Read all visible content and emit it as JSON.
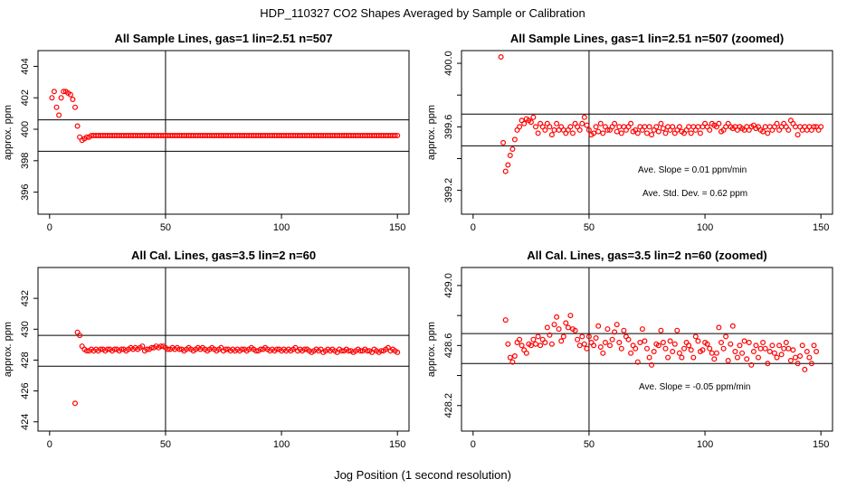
{
  "page": {
    "main_title": "HDP_110327  CO2 Shapes Averaged by Sample or Calibration",
    "xlabel": "Jog Position (1 second resolution)"
  },
  "chart_data": [
    {
      "type": "scatter",
      "title": "All Sample Lines, gas=1 lin=2.51 n=507",
      "xlabel": "",
      "ylabel": "approx. ppm",
      "xlim": [
        -5,
        155
      ],
      "ylim": [
        394.6,
        405.0
      ],
      "xticks": [
        0,
        50,
        100,
        150
      ],
      "yticks": [
        396,
        398,
        400,
        402,
        404
      ],
      "vline": 50,
      "hlines": [
        400.6,
        398.6
      ],
      "marker_color": "#ff0000",
      "points": {
        "x_start": 1,
        "y": [
          402.0,
          402.4,
          401.4,
          400.9,
          402.0,
          402.4,
          402.4,
          402.3,
          402.2,
          401.9,
          401.4,
          400.2,
          399.5,
          399.3,
          399.4,
          399.5,
          399.5,
          399.6,
          399.6,
          399.6,
          399.6,
          399.6,
          399.6,
          399.6,
          399.6,
          399.6,
          399.6,
          399.6,
          399.6,
          399.6,
          399.6,
          399.6,
          399.6,
          399.6,
          399.6,
          399.6,
          399.6,
          399.6,
          399.6,
          399.6,
          399.6,
          399.6,
          399.6,
          399.6,
          399.6,
          399.6,
          399.6,
          399.6,
          399.6,
          399.6,
          399.6,
          399.6,
          399.6,
          399.6,
          399.6,
          399.6,
          399.6,
          399.6,
          399.6,
          399.6,
          399.6,
          399.6,
          399.6,
          399.6,
          399.6,
          399.6,
          399.6,
          399.6,
          399.6,
          399.6,
          399.6,
          399.6,
          399.6,
          399.6,
          399.6,
          399.6,
          399.6,
          399.6,
          399.6,
          399.6,
          399.6,
          399.6,
          399.6,
          399.6,
          399.6,
          399.6,
          399.6,
          399.6,
          399.6,
          399.6,
          399.6,
          399.6,
          399.6,
          399.6,
          399.6,
          399.6,
          399.6,
          399.6,
          399.6,
          399.6,
          399.6,
          399.6,
          399.6,
          399.6,
          399.6,
          399.6,
          399.6,
          399.6,
          399.6,
          399.6,
          399.6,
          399.6,
          399.6,
          399.6,
          399.6,
          399.6,
          399.6,
          399.6,
          399.6,
          399.6,
          399.6,
          399.6,
          399.6,
          399.6,
          399.6,
          399.6,
          399.6,
          399.6,
          399.6,
          399.6,
          399.6,
          399.6,
          399.6,
          399.6,
          399.6,
          399.6,
          399.6,
          399.6,
          399.6,
          399.6,
          399.6,
          399.6,
          399.6,
          399.6,
          399.6,
          399.6,
          399.6,
          399.6,
          399.6,
          399.6
        ]
      },
      "annotations": []
    },
    {
      "type": "scatter",
      "title": "All Sample Lines, gas=1 lin=2.51 n=507 (zoomed)",
      "xlabel": "",
      "ylabel": "approx. ppm",
      "xlim": [
        -5,
        155
      ],
      "ylim": [
        399.05,
        400.08
      ],
      "xticks": [
        0,
        50,
        100,
        150
      ],
      "yticks": [
        399.2,
        399.4,
        399.6,
        399.8,
        400.0
      ],
      "ytick_labels": [
        "399.2",
        "",
        "399.6",
        "",
        "400.0"
      ],
      "vline": 50,
      "hlines": [
        399.68,
        399.48
      ],
      "marker_color": "#ff0000",
      "points": {
        "x_start": 12,
        "y": [
          400.04,
          399.5,
          399.32,
          399.36,
          399.42,
          399.46,
          399.52,
          399.58,
          399.6,
          399.64,
          399.62,
          399.65,
          399.64,
          399.63,
          399.66,
          399.6,
          399.56,
          399.62,
          399.6,
          399.58,
          399.62,
          399.6,
          399.55,
          399.58,
          399.62,
          399.58,
          399.6,
          399.58,
          399.56,
          399.58,
          399.6,
          399.56,
          399.62,
          399.6,
          399.58,
          399.62,
          399.66,
          399.61,
          399.58,
          399.55,
          399.56,
          399.6,
          399.57,
          399.62,
          399.56,
          399.6,
          399.58,
          399.58,
          399.6,
          399.62,
          399.57,
          399.6,
          399.56,
          399.6,
          399.58,
          399.6,
          399.62,
          399.57,
          399.58,
          399.56,
          399.6,
          399.58,
          399.6,
          399.56,
          399.6,
          399.55,
          399.58,
          399.6,
          399.57,
          399.62,
          399.59,
          399.56,
          399.6,
          399.58,
          399.6,
          399.56,
          399.58,
          399.6,
          399.57,
          399.56,
          399.58,
          399.6,
          399.56,
          399.6,
          399.58,
          399.6,
          399.56,
          399.6,
          399.62,
          399.6,
          399.58,
          399.62,
          399.61,
          399.6,
          399.62,
          399.57,
          399.58,
          399.6,
          399.62,
          399.6,
          399.59,
          399.6,
          399.58,
          399.6,
          399.59,
          399.58,
          399.6,
          399.58,
          399.6,
          399.61,
          399.59,
          399.6,
          399.58,
          399.57,
          399.6,
          399.56,
          399.6,
          399.58,
          399.6,
          399.62,
          399.58,
          399.6,
          399.62,
          399.6,
          399.58,
          399.64,
          399.62,
          399.6,
          399.55,
          399.6,
          399.58,
          399.6,
          399.58,
          399.6,
          399.58,
          399.6,
          399.6,
          399.58,
          399.6
        ]
      },
      "annotations": [
        "Ave. Slope =  0.01  ppm/min",
        "Ave. Std. Dev. =  0.62  ppm"
      ]
    },
    {
      "type": "scatter",
      "title": "All Cal. Lines, gas=3.5 lin=2 n=60",
      "xlabel": "",
      "ylabel": "approx. ppm",
      "xlim": [
        -5,
        155
      ],
      "ylim": [
        423.4,
        434.0
      ],
      "xticks": [
        0,
        50,
        100,
        150
      ],
      "yticks": [
        424,
        426,
        428,
        430,
        432
      ],
      "vline": 50,
      "hlines": [
        429.6,
        427.6
      ],
      "marker_color": "#ff0000",
      "points": {
        "x_start": 11,
        "y": [
          425.2,
          429.8,
          429.6,
          428.9,
          428.7,
          428.6,
          428.6,
          428.7,
          428.6,
          428.7,
          428.6,
          428.7,
          428.7,
          428.6,
          428.7,
          428.7,
          428.6,
          428.7,
          428.7,
          428.6,
          428.7,
          428.7,
          428.6,
          428.7,
          428.8,
          428.7,
          428.8,
          428.7,
          428.8,
          428.9,
          428.6,
          428.7,
          428.7,
          428.8,
          428.8,
          428.9,
          428.8,
          428.9,
          428.9,
          428.8,
          428.7,
          428.7,
          428.8,
          428.7,
          428.8,
          428.7,
          428.7,
          428.6,
          428.7,
          428.8,
          428.7,
          428.6,
          428.7,
          428.8,
          428.7,
          428.8,
          428.7,
          428.6,
          428.7,
          428.8,
          428.7,
          428.6,
          428.7,
          428.8,
          428.6,
          428.7,
          428.7,
          428.6,
          428.7,
          428.6,
          428.7,
          428.6,
          428.7,
          428.7,
          428.6,
          428.7,
          428.8,
          428.7,
          428.6,
          428.6,
          428.7,
          428.7,
          428.8,
          428.7,
          428.6,
          428.7,
          428.6,
          428.7,
          428.7,
          428.6,
          428.7,
          428.6,
          428.7,
          428.6,
          428.7,
          428.8,
          428.6,
          428.7,
          428.6,
          428.7,
          428.7,
          428.6,
          428.5,
          428.6,
          428.7,
          428.6,
          428.7,
          428.5,
          428.6,
          428.7,
          428.6,
          428.7,
          428.6,
          428.5,
          428.7,
          428.6,
          428.6,
          428.7,
          428.6,
          428.6,
          428.5,
          428.6,
          428.7,
          428.6,
          428.6,
          428.7,
          428.6,
          428.6,
          428.5,
          428.7,
          428.6,
          428.5,
          428.6,
          428.6,
          428.7,
          428.8,
          428.6,
          428.7,
          428.6,
          428.5
        ]
      },
      "annotations": []
    },
    {
      "type": "scatter",
      "title": "All Cal. Lines, gas=3.5 lin=2 n=60 (zoomed)",
      "xlabel": "",
      "ylabel": "approx. ppm",
      "xlim": [
        -5,
        155
      ],
      "ylim": [
        428.03,
        429.12
      ],
      "xticks": [
        0,
        50,
        100,
        150
      ],
      "yticks": [
        428.2,
        428.4,
        428.6,
        428.8,
        429.0
      ],
      "ytick_labels": [
        "428.2",
        "",
        "428.6",
        "",
        "429.0"
      ],
      "vline": 50,
      "hlines": [
        428.68,
        428.48
      ],
      "marker_color": "#ff0000",
      "points": {
        "x_start": 14,
        "y": [
          428.77,
          428.61,
          428.52,
          428.49,
          428.53,
          428.62,
          428.64,
          428.6,
          428.57,
          428.55,
          428.61,
          428.6,
          428.64,
          428.61,
          428.66,
          428.6,
          428.64,
          428.62,
          428.72,
          428.67,
          428.61,
          428.74,
          428.79,
          428.71,
          428.63,
          428.66,
          428.75,
          428.72,
          428.8,
          428.71,
          428.7,
          428.64,
          428.6,
          428.66,
          428.61,
          428.58,
          428.66,
          428.62,
          428.6,
          428.65,
          428.73,
          428.59,
          428.55,
          428.62,
          428.71,
          428.6,
          428.64,
          428.69,
          428.74,
          428.62,
          428.58,
          428.7,
          428.66,
          428.64,
          428.55,
          428.6,
          428.58,
          428.49,
          428.62,
          428.71,
          428.63,
          428.58,
          428.52,
          428.47,
          428.56,
          428.61,
          428.6,
          428.7,
          428.62,
          428.58,
          428.52,
          428.63,
          428.56,
          428.61,
          428.7,
          428.55,
          428.52,
          428.58,
          428.62,
          428.6,
          428.57,
          428.52,
          428.66,
          428.63,
          428.56,
          428.57,
          428.62,
          428.61,
          428.58,
          428.55,
          428.51,
          428.55,
          428.72,
          428.62,
          428.58,
          428.66,
          428.5,
          428.61,
          428.73,
          428.56,
          428.52,
          428.6,
          428.55,
          428.63,
          428.51,
          428.62,
          428.47,
          428.56,
          428.6,
          428.52,
          428.58,
          428.62,
          428.58,
          428.48,
          428.56,
          428.6,
          428.55,
          428.52,
          428.6,
          428.54,
          428.58,
          428.62,
          428.58,
          428.5,
          428.57,
          428.52,
          428.48,
          428.53,
          428.6,
          428.44,
          428.56,
          428.52,
          428.48,
          428.6,
          428.56
        ]
      },
      "annotations": [
        "Ave. Slope =  -0.05  ppm/min"
      ]
    }
  ]
}
